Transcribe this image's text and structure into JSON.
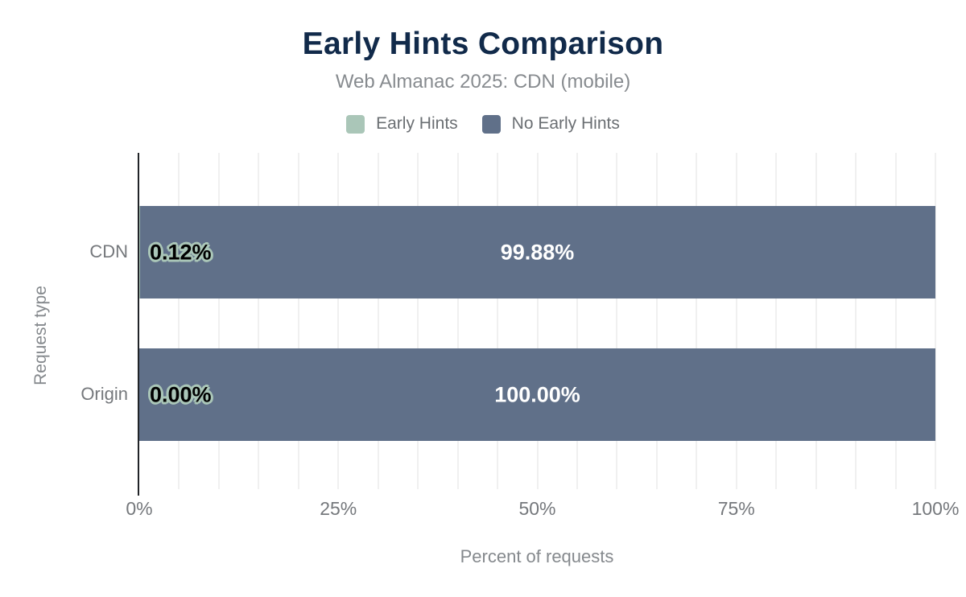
{
  "chart_data": {
    "type": "bar",
    "orientation": "horizontal",
    "stacked": true,
    "title": "Early Hints Comparison",
    "subtitle": "Web Almanac 2025: CDN (mobile)",
    "xlabel": "Percent of requests",
    "ylabel": "Request type",
    "xlim": [
      0,
      100
    ],
    "x_ticks": [
      "0%",
      "25%",
      "50%",
      "75%",
      "100%"
    ],
    "gridlines": "light vertical gridlines every 5%, dark y-axis line at 0%",
    "legend_position": "top center",
    "categories": [
      "CDN",
      "Origin"
    ],
    "series": [
      {
        "name": "Early Hints",
        "color": "#aac6b8",
        "values": [
          0.12,
          0.0
        ]
      },
      {
        "name": "No Early Hints",
        "color": "#607089",
        "values": [
          99.88,
          100.0
        ]
      }
    ],
    "rows": [
      {
        "category": "CDN",
        "values": [
          0.12,
          99.88
        ],
        "labels": [
          "0.12%",
          "99.88%"
        ]
      },
      {
        "category": "Origin",
        "values": [
          0.0,
          100.0
        ],
        "labels": [
          "0.00%",
          "100.00%"
        ]
      }
    ]
  },
  "colors": {
    "title_navy": "#112a4a",
    "early_hints_sage": "#aac6b8",
    "no_early_hints_slate": "#607089",
    "gridline": "#f0f0f0",
    "axis_line": "#212428",
    "muted_text": "#85898d"
  }
}
